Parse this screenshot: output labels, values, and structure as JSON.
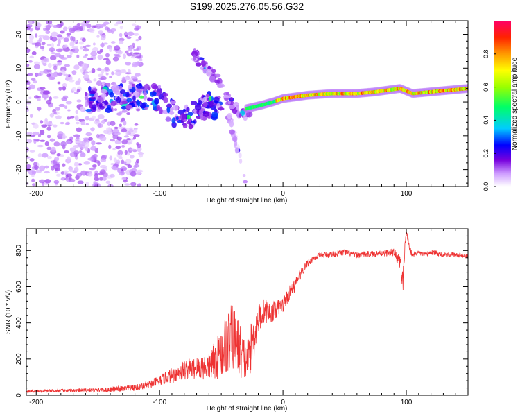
{
  "figure_title": "S199.2025.276.05.56.G32",
  "chart_data": [
    {
      "type": "heatmap",
      "title": "",
      "xlabel": "Height of straight line (km)",
      "ylabel": "Frequency (Hz)",
      "xlim": [
        -208,
        150
      ],
      "ylim": [
        -25,
        24
      ],
      "xticks": [
        -200,
        -100,
        0,
        100
      ],
      "yticks": [
        -20,
        -10,
        0,
        10,
        20
      ],
      "colorbar": {
        "label": "Normalized spectral amplitude",
        "range": [
          0,
          1
        ],
        "ticks": [
          "0.0",
          "0.2",
          "0.4",
          "0.6",
          "0.8"
        ],
        "colors": [
          "#ffffff",
          "#cc99ff",
          "#7700dd",
          "#0000ff",
          "#00ccff",
          "#00ff66",
          "#99ff00",
          "#ffff00",
          "#ff9900",
          "#ff2200",
          "#ff0066"
        ]
      },
      "features": [
        {
          "name": "noise-scatter",
          "x_range": [
            -208,
            -115
          ],
          "freq_range": [
            -25,
            24
          ],
          "amplitude": 0.1
        },
        {
          "name": "drifting-trace",
          "points": [
            [
              -160,
              1
            ],
            [
              -140,
              1
            ],
            [
              -120,
              2
            ],
            [
              -100,
              1
            ],
            [
              -90,
              -3
            ],
            [
              -80,
              -5
            ],
            [
              -70,
              -3
            ],
            [
              -60,
              -1
            ],
            [
              -50,
              -2
            ]
          ],
          "amplitude": 0.25
        },
        {
          "name": "descending-arc",
          "points": [
            [
              -72,
              14
            ],
            [
              -62,
              10
            ],
            [
              -52,
              6
            ],
            [
              -44,
              1
            ],
            [
              -38,
              -2
            ],
            [
              -32,
              -4
            ],
            [
              -26,
              -2
            ]
          ],
          "amplitude": 0.15
        },
        {
          "name": "falling-tail",
          "points": [
            [
              -44,
              -4
            ],
            [
              -38,
              -12
            ],
            [
              -33,
              -18
            ],
            [
              -30,
              -24
            ]
          ],
          "amplitude": 0.1
        },
        {
          "name": "tone-line",
          "points": [
            [
              -30,
              -2
            ],
            [
              -18,
              -1
            ],
            [
              -8,
              0
            ],
            [
              0,
              1
            ],
            [
              20,
              2
            ],
            [
              40,
              2.5
            ],
            [
              60,
              2.5
            ],
            [
              75,
              3
            ],
            [
              95,
              4
            ],
            [
              105,
              2.5
            ],
            [
              120,
              3
            ],
            [
              150,
              4
            ]
          ],
          "amplitude": 0.9
        }
      ]
    },
    {
      "type": "line",
      "title": "",
      "xlabel": "Height of straight line (km)",
      "ylabel": "SNR (10 * v/v)",
      "xlim": [
        -208,
        150
      ],
      "ylim": [
        0,
        920
      ],
      "xticks": [
        -200,
        -100,
        0,
        100
      ],
      "yticks": [
        0,
        200,
        400,
        600,
        800
      ],
      "color": "#ee3333",
      "x": [
        -208,
        -180,
        -150,
        -120,
        -110,
        -100,
        -90,
        -80,
        -70,
        -60,
        -50,
        -45,
        -40,
        -35,
        -30,
        -25,
        -20,
        -15,
        -10,
        -5,
        0,
        5,
        10,
        15,
        20,
        25,
        30,
        40,
        50,
        60,
        70,
        80,
        90,
        95,
        97,
        98,
        100,
        103,
        105,
        110,
        115,
        120,
        130,
        140,
        150
      ],
      "values": [
        22,
        25,
        28,
        40,
        55,
        80,
        110,
        140,
        150,
        160,
        230,
        300,
        320,
        250,
        180,
        280,
        420,
        470,
        450,
        480,
        500,
        560,
        610,
        680,
        730,
        760,
        770,
        780,
        790,
        775,
        780,
        785,
        790,
        730,
        620,
        700,
        910,
        800,
        780,
        790,
        775,
        790,
        780,
        775,
        770
      ],
      "amplitude": [
        10,
        12,
        18,
        25,
        30,
        40,
        60,
        80,
        90,
        110,
        200,
        260,
        270,
        220,
        150,
        200,
        120,
        100,
        80,
        70,
        60,
        60,
        50,
        40,
        30,
        25,
        25,
        25,
        25,
        25,
        25,
        25,
        30,
        60,
        90,
        120,
        30,
        25,
        25,
        20,
        20,
        20,
        20,
        20,
        20
      ]
    }
  ]
}
